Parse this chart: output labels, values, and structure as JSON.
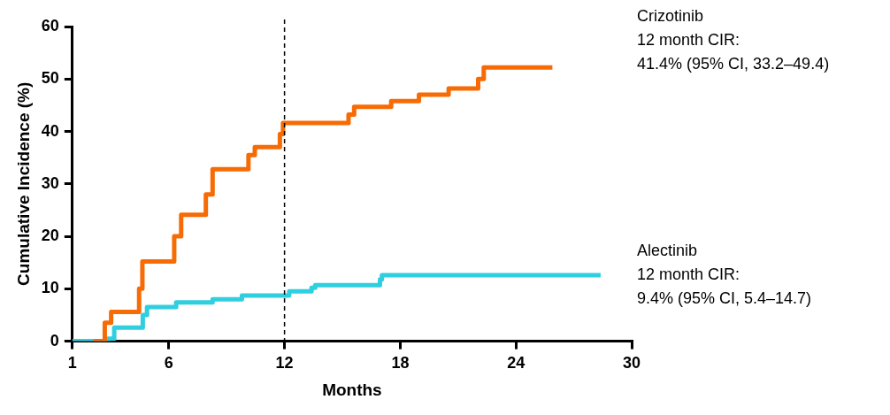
{
  "chart_data": {
    "type": "step",
    "xlabel": "Months",
    "ylabel": "Cumulative Incidence (%)",
    "xlim": [
      1,
      30
    ],
    "xticks": [
      1,
      6,
      12,
      18,
      24,
      30
    ],
    "ylim": [
      0,
      60
    ],
    "yticks": [
      0,
      10,
      20,
      30,
      40,
      50,
      60
    ],
    "grid": false,
    "legend": false,
    "marker": "none",
    "line_style": "solid",
    "ref_lines": [
      {
        "axis": "x",
        "value": 12,
        "color": "#000000",
        "line_style": "dashed"
      }
    ],
    "annotations": [
      "12 month CIR:",
      "41.4% (95% CI, 33.2–49.4)",
      "12 month CIR:",
      "9.4% (95% CI, 5.4–14.7)"
    ],
    "series": [
      {
        "name": "Crizotinib",
        "color": "#f76b05",
        "x": [
          2.11,
          2.68,
          3.01,
          4.46,
          4.63,
          6.28,
          6.64,
          7.92,
          8.27,
          10.13,
          10.46,
          11.76,
          11.92,
          15.32,
          15.61,
          17.53,
          18.97,
          20.51,
          22.04,
          22.33,
          25.89
        ],
        "values": [
          0,
          3.5,
          5.6,
          10,
          15.2,
          20,
          24.1,
          28,
          32.8,
          35.5,
          37.0,
          39.5,
          41.6,
          43.2,
          44.7,
          45.8,
          47.0,
          48.2,
          50,
          52.2,
          52.2
        ]
      },
      {
        "name": "Alectinib",
        "color": "#2fcfe0",
        "x": [
          1,
          2.84,
          3.17,
          4.65,
          4.87,
          6.38,
          8.27,
          9.79,
          12.24,
          13.4,
          13.59,
          16.95,
          17.05,
          28.39
        ],
        "values": [
          0,
          0.5,
          2.6,
          5,
          6.5,
          7.4,
          8.0,
          8.7,
          9.5,
          10.2,
          10.7,
          11.8,
          12.6,
          12.6
        ]
      }
    ]
  }
}
